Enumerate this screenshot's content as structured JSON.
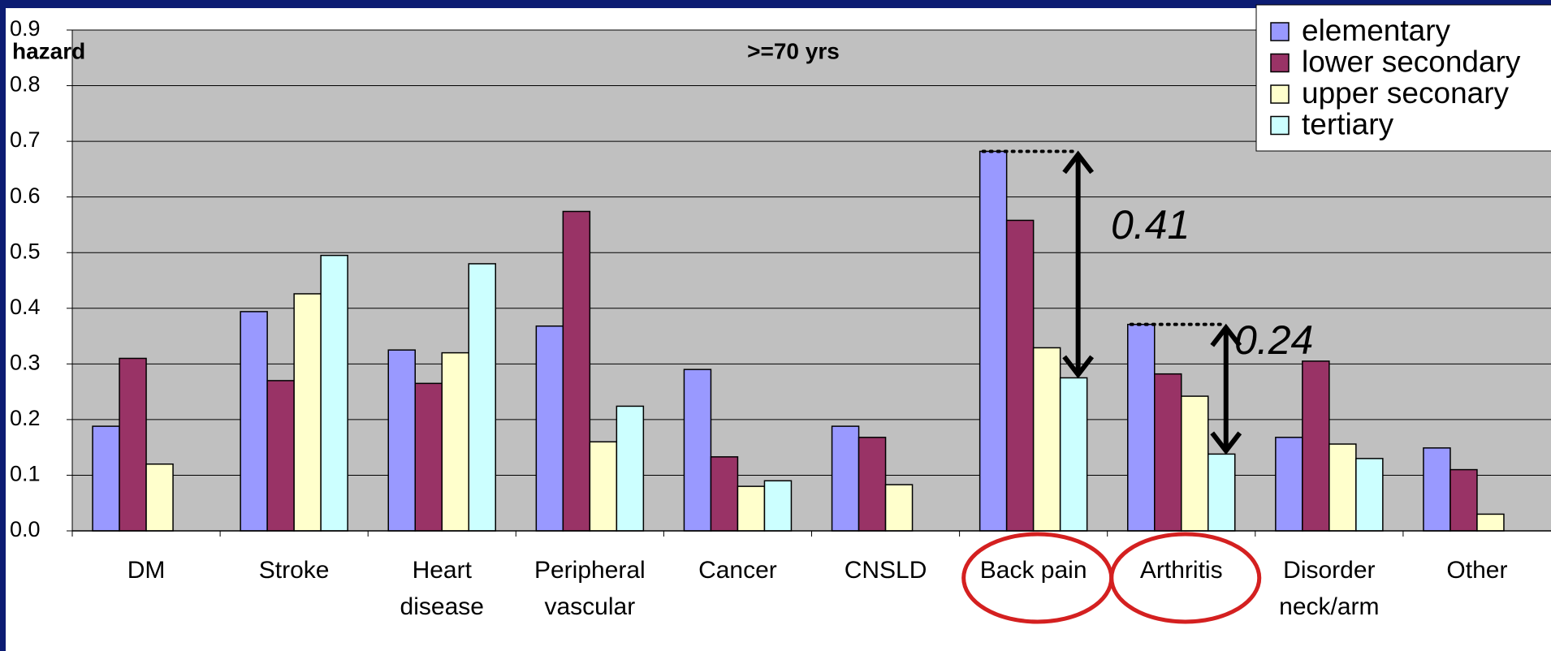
{
  "chart_data": {
    "type": "bar",
    "title": ">=70 yrs",
    "y_label": "hazard",
    "categories": [
      "DM",
      "Stroke",
      "Heart disease",
      "Peripheral vascular",
      "Cancer",
      "CNSLD",
      "Back pain",
      "Arthritis",
      "Disorder neck/arm",
      "Other"
    ],
    "series": [
      {
        "name": "elementary",
        "color": "#9999ff",
        "values": [
          0.188,
          0.394,
          0.325,
          0.368,
          0.29,
          0.188,
          0.682,
          0.371,
          0.168,
          0.149
        ]
      },
      {
        "name": "lower secondary",
        "color": "#993366",
        "values": [
          0.31,
          0.27,
          0.265,
          0.574,
          0.133,
          0.168,
          0.558,
          0.282,
          0.305,
          0.11
        ]
      },
      {
        "name": "upper seconary",
        "color": "#ffffcc",
        "values": [
          0.12,
          0.426,
          0.32,
          0.16,
          0.08,
          0.083,
          0.329,
          0.242,
          0.156,
          0.03
        ]
      },
      {
        "name": "tertiary",
        "color": "#ccffff",
        "values": [
          null,
          0.495,
          0.48,
          0.224,
          0.09,
          null,
          0.275,
          0.138,
          0.13,
          null
        ]
      }
    ],
    "ylim": [
      0,
      0.9
    ],
    "yticks": [
      {
        "value": 0,
        "label": "0.0"
      },
      0.1,
      0.2,
      0.3,
      0.4,
      0.5,
      0.6,
      0.7,
      0.8,
      0.9
    ],
    "grid": true,
    "legend": "top-right",
    "annotations": [
      "0.41",
      "0.24"
    ]
  }
}
